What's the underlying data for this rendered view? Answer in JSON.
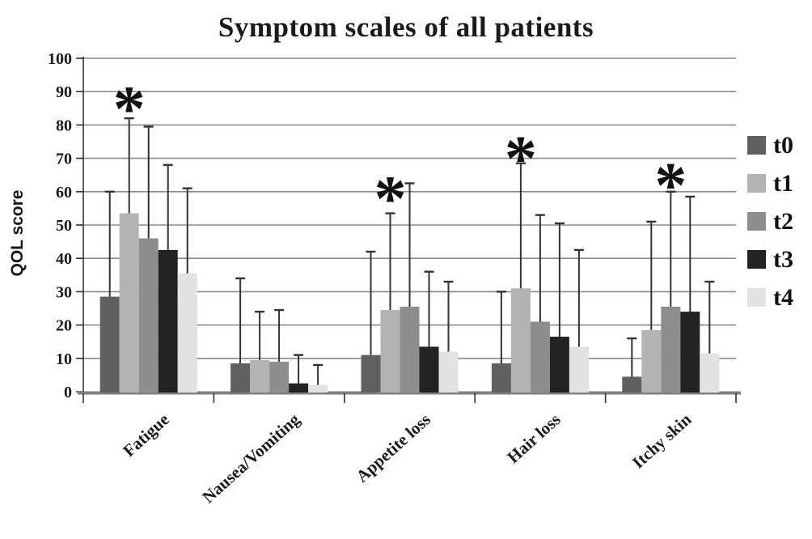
{
  "figure": {
    "title": "Symptom scales of all patients",
    "ylabel": "QOL score"
  },
  "palette": {
    "background": "#ffffff",
    "gridline": "#8a8a8a",
    "axis_line": "#808080",
    "tick_and_error": "#333333",
    "text": "#1a1a1a"
  },
  "chart_data": {
    "type": "bar",
    "title": "Symptom scales of all patients",
    "ylabel": "QOL score",
    "xlabel": "",
    "ylim": [
      0,
      100
    ],
    "ytick_step": 10,
    "yticks": [
      0,
      10,
      20,
      30,
      40,
      50,
      60,
      70,
      80,
      90,
      100
    ],
    "grid": true,
    "legend_position": "right",
    "error_bars": "upper-only",
    "categories": [
      "Fatigue",
      "Nausea/Vomiting",
      "Appetite loss",
      "Hair loss",
      "Itchy skin"
    ],
    "series": [
      {
        "name": "t0",
        "color": "#606060",
        "values": [
          28.5,
          8.5,
          11,
          8.5,
          4.5
        ],
        "error_top": [
          60,
          34,
          42,
          30,
          16
        ]
      },
      {
        "name": "t1",
        "color": "#b3b3b3",
        "values": [
          53.5,
          9.5,
          24.5,
          31,
          18.5
        ],
        "error_top": [
          82,
          24,
          53.5,
          68.5,
          51
        ]
      },
      {
        "name": "t2",
        "color": "#8d8d8d",
        "values": [
          46,
          9,
          25.5,
          21,
          25.5
        ],
        "error_top": [
          79.5,
          24.5,
          62.5,
          53,
          60
        ]
      },
      {
        "name": "t3",
        "color": "#222222",
        "values": [
          42.5,
          2.5,
          13.5,
          16.5,
          24
        ],
        "error_top": [
          68,
          11,
          36,
          50.5,
          58.5
        ]
      },
      {
        "name": "t4",
        "color": "#e2e2e2",
        "values": [
          35.5,
          2,
          12,
          13.5,
          11.5
        ],
        "error_top": [
          61,
          8,
          33,
          42.5,
          33
        ]
      }
    ],
    "significance_markers": [
      {
        "symbol": "*",
        "category": "Fatigue",
        "category_index": 0,
        "series": "t1",
        "series_index": 1,
        "y": 88
      },
      {
        "symbol": "*",
        "category": "Appetite loss",
        "category_index": 2,
        "series": "t1",
        "series_index": 1,
        "y": 61
      },
      {
        "symbol": "*",
        "category": "Hair loss",
        "category_index": 3,
        "series": "t1",
        "series_index": 1,
        "y": 73
      },
      {
        "symbol": "*",
        "category": "Itchy skin",
        "category_index": 4,
        "series": "t2",
        "series_index": 2,
        "y": 65
      }
    ]
  }
}
